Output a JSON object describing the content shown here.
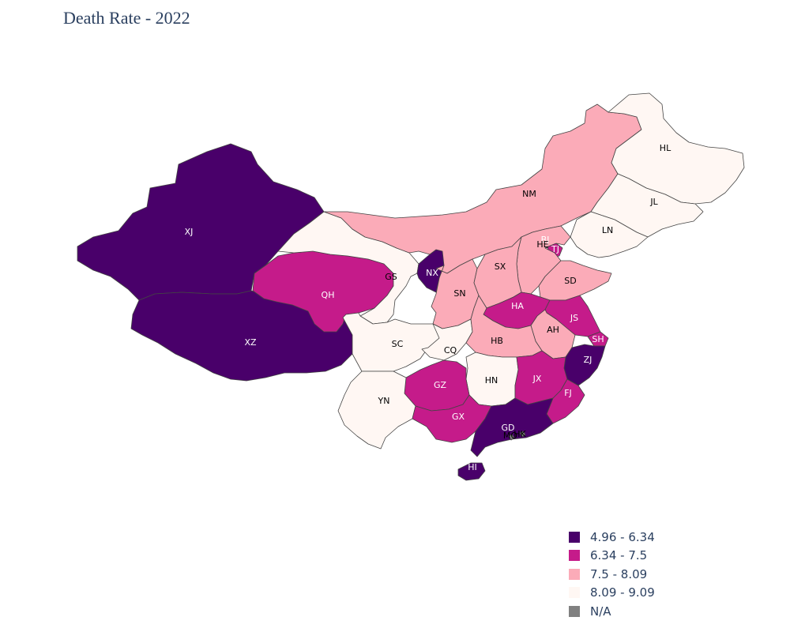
{
  "title": "Death Rate - 2022",
  "legend": [
    {
      "label": "4.96 - 6.34",
      "color": "#49006a"
    },
    {
      "label": "6.34 - 7.5",
      "color": "#c51b8a"
    },
    {
      "label": "7.5 - 8.09",
      "color": "#fbabb8"
    },
    {
      "label": "8.09 - 9.09",
      "color": "#fff7f3"
    },
    {
      "label": "N/A",
      "color": "#808080"
    }
  ],
  "provinces": [
    {
      "code": "XJ",
      "bin": 0
    },
    {
      "code": "XZ",
      "bin": 0
    },
    {
      "code": "QH",
      "bin": 1
    },
    {
      "code": "GS",
      "bin": 3
    },
    {
      "code": "NM",
      "bin": 2
    },
    {
      "code": "HL",
      "bin": 3
    },
    {
      "code": "JL",
      "bin": 3
    },
    {
      "code": "LN",
      "bin": 3
    },
    {
      "code": "BJ",
      "bin": 0
    },
    {
      "code": "TJ",
      "bin": 1
    },
    {
      "code": "HE",
      "bin": 2
    },
    {
      "code": "NX",
      "bin": 0
    },
    {
      "code": "SN",
      "bin": 2
    },
    {
      "code": "SX",
      "bin": 2
    },
    {
      "code": "SD",
      "bin": 2
    },
    {
      "code": "HA",
      "bin": 1
    },
    {
      "code": "JS",
      "bin": 1
    },
    {
      "code": "AH",
      "bin": 2
    },
    {
      "code": "SH",
      "bin": 1
    },
    {
      "code": "SC",
      "bin": 3
    },
    {
      "code": "CQ",
      "bin": 3
    },
    {
      "code": "HB",
      "bin": 2
    },
    {
      "code": "ZJ",
      "bin": 0
    },
    {
      "code": "HN",
      "bin": 3
    },
    {
      "code": "JX",
      "bin": 1
    },
    {
      "code": "GZ",
      "bin": 1
    },
    {
      "code": "FJ",
      "bin": 1
    },
    {
      "code": "YN",
      "bin": 3
    },
    {
      "code": "GX",
      "bin": 1
    },
    {
      "code": "GD",
      "bin": 0
    },
    {
      "code": "MO",
      "bin": 4
    },
    {
      "code": "HK",
      "bin": 4
    },
    {
      "code": "HI",
      "bin": 0
    }
  ]
}
